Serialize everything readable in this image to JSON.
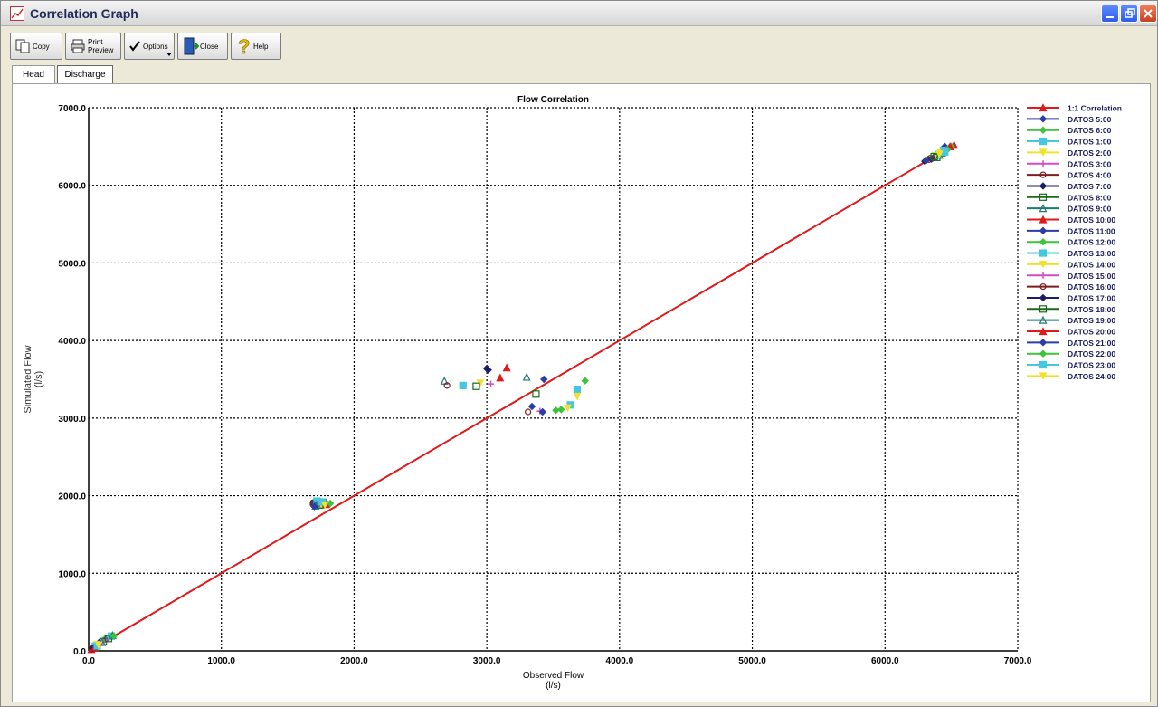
{
  "window": {
    "title": "Correlation Graph"
  },
  "toolbar": {
    "copy_label": "Copy",
    "print_label": "Print Preview",
    "options_label": "Options",
    "close_label": "Close",
    "help_label": "Help"
  },
  "tabs": [
    {
      "label": "Head",
      "active": false
    },
    {
      "label": "Discharge",
      "active": true
    }
  ],
  "colors": {
    "ref_line": "#e01a1a",
    "grid": "#000000",
    "series_palette": [
      "#2a3ea8",
      "#3dc23a",
      "#45c7e0",
      "#f0e22a",
      "#d44ac8",
      "#7a1e1e",
      "#1c1c6a",
      "#1a6a1a",
      "#1e7a6e",
      "#e01a1a"
    ]
  },
  "chart_data": {
    "type": "scatter",
    "title": "Flow Correlation",
    "xlabel": "Observed Flow\n(l/s)",
    "ylabel": "Simulated Flow\n(l/s)",
    "xlim": [
      0,
      7000
    ],
    "ylim": [
      0,
      7000
    ],
    "x_ticks": [
      "0.0",
      "1000.0",
      "2000.0",
      "3000.0",
      "4000.0",
      "5000.0",
      "6000.0",
      "7000.0"
    ],
    "y_ticks": [
      "0.0",
      "1000.0",
      "2000.0",
      "3000.0",
      "4000.0",
      "5000.0",
      "6000.0",
      "7000.0"
    ],
    "grid": true,
    "legend_position": "right",
    "reference_line": {
      "name": "1:1 Correlation",
      "from": [
        0,
        0
      ],
      "to": [
        6500,
        6500
      ]
    },
    "series": [
      {
        "name": "DATOS 5:00",
        "points": [
          [
            80,
            110
          ],
          [
            1700,
            1900
          ],
          [
            3430,
            3500
          ],
          [
            6450,
            6500
          ]
        ]
      },
      {
        "name": "DATOS 6:00",
        "points": [
          [
            120,
            150
          ],
          [
            1740,
            1890
          ],
          [
            3560,
            3110
          ],
          [
            6480,
            6480
          ]
        ]
      },
      {
        "name": "DATOS 1:00",
        "points": [
          [
            50,
            60
          ],
          [
            1760,
            1880
          ],
          [
            3630,
            3170
          ],
          [
            6400,
            6400
          ]
        ]
      },
      {
        "name": "DATOS 2:00",
        "points": [
          [
            60,
            80
          ],
          [
            1730,
            1890
          ],
          [
            2950,
            3450
          ],
          [
            6380,
            6380
          ]
        ]
      },
      {
        "name": "DATOS 3:00",
        "points": [
          [
            90,
            100
          ],
          [
            1780,
            1900
          ],
          [
            3400,
            3090
          ],
          [
            6420,
            6450
          ]
        ]
      },
      {
        "name": "DATOS 4:00",
        "points": [
          [
            40,
            40
          ],
          [
            1690,
            1910
          ],
          [
            3310,
            3080
          ],
          [
            6330,
            6330
          ]
        ]
      },
      {
        "name": "DATOS 7:00",
        "points": [
          [
            30,
            30
          ],
          [
            1720,
            1880
          ],
          [
            3000,
            3640
          ],
          [
            6350,
            6340
          ]
        ]
      },
      {
        "name": "DATOS 8:00",
        "points": [
          [
            110,
            120
          ],
          [
            1750,
            1910
          ],
          [
            3370,
            3310
          ],
          [
            6390,
            6360
          ]
        ]
      },
      {
        "name": "DATOS 9:00",
        "points": [
          [
            100,
            110
          ],
          [
            1710,
            1900
          ],
          [
            2680,
            3480
          ],
          [
            6410,
            6390
          ]
        ]
      },
      {
        "name": "DATOS 10:00",
        "points": [
          [
            20,
            20
          ],
          [
            1790,
            1910
          ],
          [
            3150,
            3650
          ],
          [
            6520,
            6520
          ]
        ]
      },
      {
        "name": "DATOS 11:00",
        "points": [
          [
            140,
            160
          ],
          [
            1700,
            1920
          ],
          [
            3340,
            3150
          ],
          [
            6360,
            6350
          ]
        ]
      },
      {
        "name": "DATOS 12:00",
        "points": [
          [
            160,
            180
          ],
          [
            1800,
            1890
          ],
          [
            3740,
            3480
          ],
          [
            6500,
            6500
          ]
        ]
      },
      {
        "name": "DATOS 13:00",
        "points": [
          [
            170,
            190
          ],
          [
            1720,
            1930
          ],
          [
            3680,
            3370
          ],
          [
            6440,
            6450
          ]
        ]
      },
      {
        "name": "DATOS 14:00",
        "points": [
          [
            70,
            70
          ],
          [
            1760,
            1870
          ],
          [
            3610,
            3130
          ],
          [
            6420,
            6420
          ]
        ]
      },
      {
        "name": "DATOS 15:00",
        "points": [
          [
            130,
            140
          ],
          [
            1730,
            1900
          ],
          [
            3030,
            3440
          ],
          [
            6460,
            6460
          ]
        ]
      },
      {
        "name": "DATOS 16:00",
        "points": [
          [
            25,
            25
          ],
          [
            1690,
            1890
          ],
          [
            2700,
            3420
          ],
          [
            6340,
            6350
          ]
        ]
      },
      {
        "name": "DATOS 17:00",
        "points": [
          [
            35,
            35
          ],
          [
            1770,
            1900
          ],
          [
            3010,
            3620
          ],
          [
            6300,
            6310
          ]
        ]
      },
      {
        "name": "DATOS 18:00",
        "points": [
          [
            150,
            160
          ],
          [
            1740,
            1880
          ],
          [
            2920,
            3410
          ],
          [
            6370,
            6370
          ]
        ]
      },
      {
        "name": "DATOS 19:00",
        "points": [
          [
            180,
            200
          ],
          [
            1710,
            1870
          ],
          [
            3300,
            3530
          ],
          [
            6430,
            6420
          ]
        ]
      },
      {
        "name": "DATOS 20:00",
        "points": [
          [
            45,
            45
          ],
          [
            1790,
            1890
          ],
          [
            3100,
            3520
          ],
          [
            6490,
            6500
          ]
        ]
      },
      {
        "name": "DATOS 21:00",
        "points": [
          [
            55,
            55
          ],
          [
            1700,
            1860
          ],
          [
            3420,
            3080
          ],
          [
            6310,
            6320
          ]
        ]
      },
      {
        "name": "DATOS 22:00",
        "points": [
          [
            190,
            190
          ],
          [
            1820,
            1900
          ],
          [
            3520,
            3100
          ],
          [
            6470,
            6460
          ]
        ]
      },
      {
        "name": "DATOS 23:00",
        "points": [
          [
            65,
            65
          ],
          [
            1760,
            1920
          ],
          [
            2820,
            3420
          ],
          [
            6450,
            6430
          ]
        ]
      },
      {
        "name": "DATOS 24:00",
        "points": [
          [
            75,
            75
          ],
          [
            1780,
            1880
          ],
          [
            3680,
            3280
          ],
          [
            6410,
            6400
          ]
        ]
      }
    ]
  }
}
